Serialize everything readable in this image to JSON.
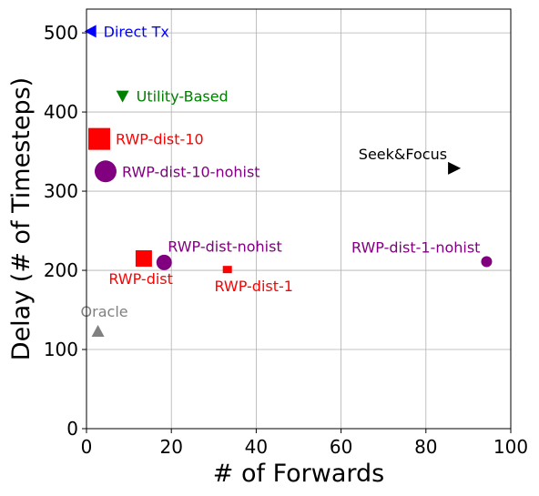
{
  "chart_data": {
    "type": "scatter",
    "xlabel": "# of Forwards",
    "ylabel": "Delay (# of Timesteps)",
    "xlim": [
      0,
      100
    ],
    "ylim": [
      0,
      530
    ],
    "grid": true,
    "x_ticks": [
      0,
      20,
      40,
      60,
      80,
      100
    ],
    "y_ticks": [
      0,
      100,
      200,
      300,
      400,
      500
    ],
    "points": [
      {
        "label": "Direct Tx",
        "x": 1,
        "y": 502,
        "marker": "triangle-left",
        "color": "#0000ff",
        "label_pos": "right"
      },
      {
        "label": "Utility-Based",
        "x": 8.5,
        "y": 420,
        "marker": "triangle-down",
        "color": "#008000",
        "label_pos": "right"
      },
      {
        "label": "RWP-dist-10",
        "x": 3,
        "y": 366,
        "marker": "square-large",
        "color": "#ff0000",
        "label_pos": "right"
      },
      {
        "label": "RWP-dist-10-nohist",
        "x": 4.5,
        "y": 325,
        "marker": "circle-large",
        "color": "#800080",
        "label_pos": "right"
      },
      {
        "label": "Seek&Focus",
        "x": 86.5,
        "y": 329,
        "marker": "triangle-right",
        "color": "#000000",
        "label_pos": "above-left"
      },
      {
        "label": "RWP-dist",
        "x": 13.5,
        "y": 215,
        "marker": "square",
        "color": "#ff0000",
        "label_pos": "below-left"
      },
      {
        "label": "RWP-dist-nohist",
        "x": 18.3,
        "y": 210,
        "marker": "circle",
        "color": "#800080",
        "label_pos": "above-right"
      },
      {
        "label": "RWP-dist-1",
        "x": 33.2,
        "y": 201,
        "marker": "square-small",
        "color": "#ff0000",
        "label_pos": "below"
      },
      {
        "label": "RWP-dist-1-nohist",
        "x": 94.3,
        "y": 211,
        "marker": "circle-small",
        "color": "#800080",
        "label_pos": "above-left"
      },
      {
        "label": "Oracle",
        "x": 2.7,
        "y": 123,
        "marker": "triangle-up",
        "color": "#808080",
        "label_pos": "above"
      }
    ]
  }
}
